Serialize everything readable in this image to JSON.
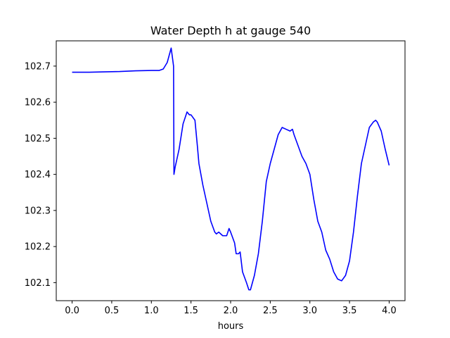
{
  "chart_data": {
    "type": "line",
    "title": "Water Depth h at gauge 540",
    "xlabel": "hours",
    "ylabel": "",
    "xlim": [
      -0.2,
      4.2
    ],
    "ylim": [
      102.05,
      102.77
    ],
    "grid": false,
    "xticks": [
      0.0,
      0.5,
      1.0,
      1.5,
      2.0,
      2.5,
      3.0,
      3.5,
      4.0
    ],
    "xtick_labels": [
      "0.0",
      "0.5",
      "1.0",
      "1.5",
      "2.0",
      "2.5",
      "3.0",
      "3.5",
      "4.0"
    ],
    "yticks": [
      102.1,
      102.2,
      102.3,
      102.4,
      102.5,
      102.6,
      102.7
    ],
    "ytick_labels": [
      "102.1",
      "102.2",
      "102.3",
      "102.4",
      "102.5",
      "102.6",
      "102.7"
    ],
    "series": [
      {
        "color": "#0000ff",
        "x": [
          0.0,
          0.2,
          0.4,
          0.6,
          0.8,
          1.0,
          1.1,
          1.15,
          1.2,
          1.25,
          1.28,
          1.285,
          1.3,
          1.35,
          1.4,
          1.45,
          1.48,
          1.5,
          1.55,
          1.58,
          1.6,
          1.65,
          1.7,
          1.75,
          1.8,
          1.82,
          1.85,
          1.9,
          1.95,
          1.98,
          2.0,
          2.05,
          2.07,
          2.1,
          2.12,
          2.15,
          2.2,
          2.23,
          2.25,
          2.3,
          2.35,
          2.4,
          2.45,
          2.5,
          2.55,
          2.6,
          2.65,
          2.7,
          2.75,
          2.78,
          2.8,
          2.85,
          2.9,
          2.95,
          3.0,
          3.05,
          3.1,
          3.15,
          3.2,
          3.25,
          3.3,
          3.35,
          3.4,
          3.45,
          3.5,
          3.55,
          3.6,
          3.65,
          3.7,
          3.75,
          3.8,
          3.83,
          3.85,
          3.9,
          3.95,
          4.0
        ],
        "values": [
          102.683,
          102.683,
          102.684,
          102.685,
          102.687,
          102.688,
          102.688,
          102.692,
          102.71,
          102.75,
          102.7,
          102.4,
          102.42,
          102.47,
          102.54,
          102.573,
          102.565,
          102.565,
          102.55,
          102.48,
          102.43,
          102.37,
          102.32,
          102.27,
          102.24,
          102.235,
          102.24,
          102.23,
          102.23,
          102.25,
          102.24,
          102.21,
          102.18,
          102.18,
          102.185,
          102.13,
          102.1,
          102.08,
          102.08,
          102.12,
          102.18,
          102.27,
          102.38,
          102.43,
          102.47,
          102.51,
          102.53,
          102.525,
          102.52,
          102.525,
          102.51,
          102.48,
          102.45,
          102.43,
          102.4,
          102.33,
          102.27,
          102.24,
          102.19,
          102.165,
          102.13,
          102.11,
          102.105,
          102.12,
          102.16,
          102.24,
          102.34,
          102.43,
          102.48,
          102.53,
          102.545,
          102.55,
          102.545,
          102.52,
          102.47,
          102.425
        ]
      }
    ]
  }
}
